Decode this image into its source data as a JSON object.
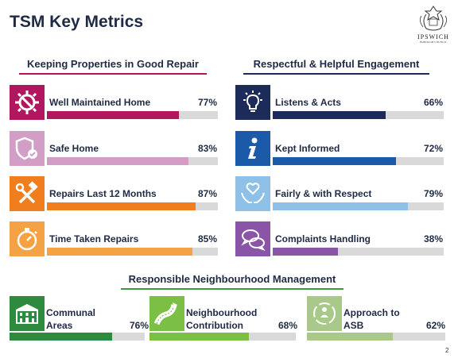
{
  "title": "TSM Key Metrics",
  "logo": {
    "name": "IPSWICH",
    "subtitle": "BOROUGH COUNCIL"
  },
  "page_number": "2",
  "sections": {
    "left": {
      "heading": "Keeping Properties in Good Repair",
      "metrics": [
        {
          "label": "Well Maintained Home",
          "percent": "77%",
          "value": 0.77,
          "color": "#b0175f",
          "bar": "#b0175f",
          "icon": "gear-wrench-icon"
        },
        {
          "label": "Safe Home",
          "percent": "83%",
          "value": 0.83,
          "color": "#d29ec6",
          "bar": "#d29ec6",
          "icon": "shield-check-icon"
        },
        {
          "label": "Repairs Last 12 Months",
          "percent": "87%",
          "value": 0.87,
          "color": "#f07d1e",
          "bar": "#f07d1e",
          "icon": "hammer-wrench-icon"
        },
        {
          "label": "Time Taken Repairs",
          "percent": "85%",
          "value": 0.85,
          "color": "#f4a244",
          "bar": "#f4a244",
          "icon": "stopwatch-icon"
        }
      ]
    },
    "right": {
      "heading": "Respectful & Helpful Engagement",
      "metrics": [
        {
          "label": "Listens & Acts",
          "percent": "66%",
          "value": 0.66,
          "color": "#1d2b5a",
          "bar": "#1d2b5a",
          "icon": "lightbulb-icon"
        },
        {
          "label": "Kept Informed",
          "percent": "72%",
          "value": 0.72,
          "color": "#1a5aa8",
          "bar": "#1a5aa8",
          "icon": "info-icon"
        },
        {
          "label": "Fairly & with Respect",
          "percent": "79%",
          "value": 0.79,
          "color": "#8ec0e8",
          "bar": "#8ec0e8",
          "icon": "heart-hands-icon"
        },
        {
          "label": "Complaints Handling",
          "percent": "38%",
          "value": 0.38,
          "color": "#8a55a6",
          "bar": "#8a55a6",
          "icon": "speech-bubbles-icon"
        }
      ]
    },
    "bottom": {
      "heading": "Responsible Neighbourhood Management",
      "metrics": [
        {
          "label_line1": "Communal",
          "label_line2": "Areas",
          "percent": "76%",
          "value": 0.76,
          "color": "#2e8a3e",
          "bar": "#2e8a3e",
          "icon": "building-icon"
        },
        {
          "label_line1": "Neighbourhood",
          "label_line2": "Contribution",
          "percent": "68%",
          "value": 0.68,
          "color": "#7cbf45",
          "bar": "#7cbf45",
          "icon": "road-icon"
        },
        {
          "label_line1": "Approach to",
          "label_line2": "ASB",
          "percent": "62%",
          "value": 0.62,
          "color": "#a9c98a",
          "bar": "#a9c98a",
          "icon": "community-icon"
        }
      ]
    }
  }
}
